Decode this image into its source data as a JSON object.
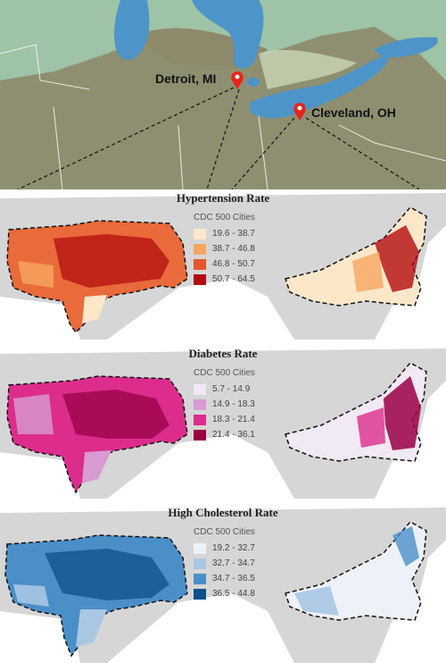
{
  "overview_map": {
    "cities": [
      {
        "name": "Detroit, MI",
        "icon": "map-pin-icon"
      },
      {
        "name": "Cleveland, OH",
        "icon": "map-pin-icon"
      }
    ],
    "colors": {
      "water": "#4d94c9",
      "land_light": "#9fc3a6",
      "land_dark": "#8c8a6b",
      "pin": "#e8231c"
    }
  },
  "panels": [
    {
      "title": "Hypertension Rate",
      "legend_title": "CDC 500 Cities",
      "legend": [
        {
          "range": "19.6 - 38.7",
          "color": "#fde7c9"
        },
        {
          "range": "38.7 - 46.8",
          "color": "#f7a661"
        },
        {
          "range": "46.8 - 50.7",
          "color": "#e4572e"
        },
        {
          "range": "50.7 - 64.5",
          "color": "#b30d0f"
        }
      ]
    },
    {
      "title": "Diabetes Rate",
      "legend_title": "CDC 500 Cities",
      "legend": [
        {
          "range": "5.7 - 14.9",
          "color": "#f1e9f3"
        },
        {
          "range": "14.9 - 18.3",
          "color": "#d89bd2"
        },
        {
          "range": "18.3 - 21.4",
          "color": "#dc2d8c"
        },
        {
          "range": "21.4 - 36.1",
          "color": "#9a0045"
        }
      ]
    },
    {
      "title": "High Cholesterol Rate",
      "legend_title": "CDC 500 Cities",
      "legend": [
        {
          "range": "19.2 - 32.7",
          "color": "#eef2f8"
        },
        {
          "range": "32.7 - 34.7",
          "color": "#a9c7e3"
        },
        {
          "range": "34.7 - 36.5",
          "color": "#4a8fc8"
        },
        {
          "range": "36.5 - 44.8",
          "color": "#0c4f8c"
        }
      ]
    }
  ]
}
